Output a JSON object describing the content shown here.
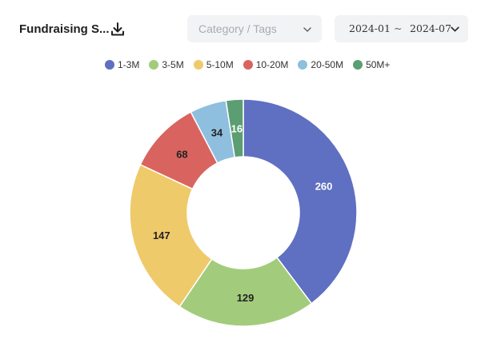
{
  "header": {
    "title": "Fundraising S...",
    "download_icon": "download-icon"
  },
  "filters": {
    "category_placeholder": "Category / Tags",
    "date_start": "2024-01",
    "date_separator": "~",
    "date_end": "2024-07",
    "chevron_icon": "chevron-down-icon"
  },
  "chart_data": {
    "type": "pie",
    "donut": true,
    "legend_position": "top",
    "categories": [
      "1-3M",
      "3-5M",
      "5-10M",
      "10-20M",
      "20-50M",
      "50M+"
    ],
    "values": [
      260,
      129,
      147,
      68,
      34,
      16
    ],
    "colors": [
      "#5f6fc1",
      "#a2cc7c",
      "#efca6b",
      "#d9645f",
      "#8fbfdf",
      "#5a9e72"
    ],
    "title": ""
  }
}
